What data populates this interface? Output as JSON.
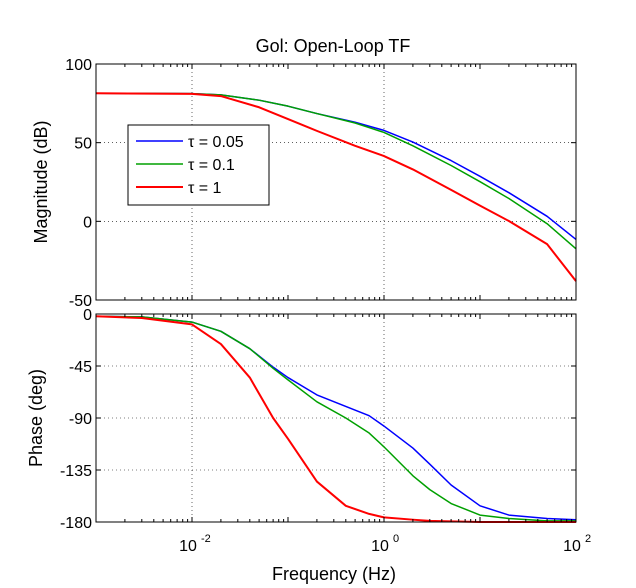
{
  "chart_data": [
    {
      "type": "line",
      "title": "Gol: Open-Loop TF",
      "xlabel": "",
      "ylabel": "Magnitude (dB)",
      "xscale": "log",
      "xlim": [
        0.001,
        100
      ],
      "ylim": [
        -50,
        100
      ],
      "yticks": [
        {
          "value": -50,
          "label": "-50"
        },
        {
          "value": 0,
          "label": "0"
        },
        {
          "value": 50,
          "label": "50"
        },
        {
          "value": 100,
          "label": "100"
        }
      ],
      "grid": true,
      "legend": {
        "placement": "upper-left",
        "entries": [
          "τ = 0.05",
          "τ = 0.1",
          "τ = 1"
        ]
      },
      "series": [
        {
          "name": "τ = 0.05",
          "color": "#0000ff",
          "x": [
            0.001,
            0.01,
            0.02,
            0.05,
            0.1,
            0.2,
            0.5,
            1,
            2,
            5,
            10,
            20,
            50,
            100
          ],
          "values": [
            81.4,
            81.2,
            80.4,
            77,
            73.2,
            68.5,
            63,
            57.8,
            50.4,
            38.6,
            28.6,
            18.2,
            3.2,
            -11.5
          ]
        },
        {
          "name": "τ = 0.1",
          "color": "#00a000",
          "x": [
            0.001,
            0.01,
            0.02,
            0.05,
            0.1,
            0.2,
            0.5,
            1,
            2,
            5,
            10,
            20,
            50,
            100
          ],
          "values": [
            81.4,
            81.2,
            80.4,
            77,
            73.2,
            68.5,
            62.5,
            56.5,
            48,
            35.5,
            25.2,
            14.5,
            -1.5,
            -17.5
          ]
        },
        {
          "name": "τ = 1",
          "color": "#ff0000",
          "x": [
            0.001,
            0.01,
            0.02,
            0.05,
            0.1,
            0.2,
            0.5,
            1,
            2,
            5,
            10,
            20,
            50,
            100
          ],
          "values": [
            81.4,
            81,
            79.6,
            72.5,
            65,
            57.5,
            48,
            41.5,
            33,
            20,
            10,
            0.2,
            -14.5,
            -38
          ]
        }
      ]
    },
    {
      "type": "line",
      "xlabel": "Frequency  (Hz)",
      "ylabel": "Phase (deg)",
      "xscale": "log",
      "xlim": [
        0.001,
        100
      ],
      "ylim": [
        -180,
        0
      ],
      "xticks": [
        {
          "value": 0.01,
          "base": "10",
          "exp": "-2"
        },
        {
          "value": 1,
          "base": "10",
          "exp": "0"
        },
        {
          "value": 100,
          "base": "10",
          "exp": "2"
        }
      ],
      "yticks": [
        {
          "value": 0,
          "label": "0"
        },
        {
          "value": -45,
          "label": "-45"
        },
        {
          "value": -90,
          "label": "-90"
        },
        {
          "value": -135,
          "label": "-135"
        },
        {
          "value": -180,
          "label": "-180"
        }
      ],
      "grid": true,
      "series": [
        {
          "name": "τ = 0.05",
          "color": "#0000ff",
          "x": [
            0.001,
            0.003,
            0.01,
            0.02,
            0.04,
            0.07,
            0.1,
            0.2,
            0.4,
            0.7,
            1,
            2,
            3,
            5,
            10,
            20,
            50,
            100
          ],
          "values": [
            -2,
            -2.5,
            -7,
            -15,
            -30,
            -46,
            -55,
            -70,
            -80,
            -88,
            -97,
            -116,
            -130,
            -148,
            -166,
            -174,
            -177,
            -178
          ]
        },
        {
          "name": "τ = 0.1",
          "color": "#00a000",
          "x": [
            0.001,
            0.003,
            0.01,
            0.02,
            0.04,
            0.07,
            0.1,
            0.2,
            0.4,
            0.7,
            1,
            2,
            3,
            5,
            10,
            20,
            50,
            100
          ],
          "values": [
            -2,
            -2.5,
            -7,
            -15,
            -30,
            -47,
            -57,
            -76,
            -90,
            -103,
            -115,
            -140,
            -152,
            -164,
            -174,
            -177,
            -179,
            -179
          ]
        },
        {
          "name": "τ = 1",
          "color": "#ff0000",
          "x": [
            0.001,
            0.003,
            0.01,
            0.02,
            0.04,
            0.07,
            0.1,
            0.2,
            0.4,
            0.7,
            1,
            2,
            3,
            5,
            10,
            20,
            50,
            100
          ],
          "values": [
            -2,
            -3.5,
            -9,
            -26,
            -55,
            -90,
            -108,
            -145,
            -166,
            -173,
            -176,
            -178,
            -179,
            -179.5,
            -180,
            -180,
            -180,
            -180
          ]
        }
      ]
    }
  ]
}
